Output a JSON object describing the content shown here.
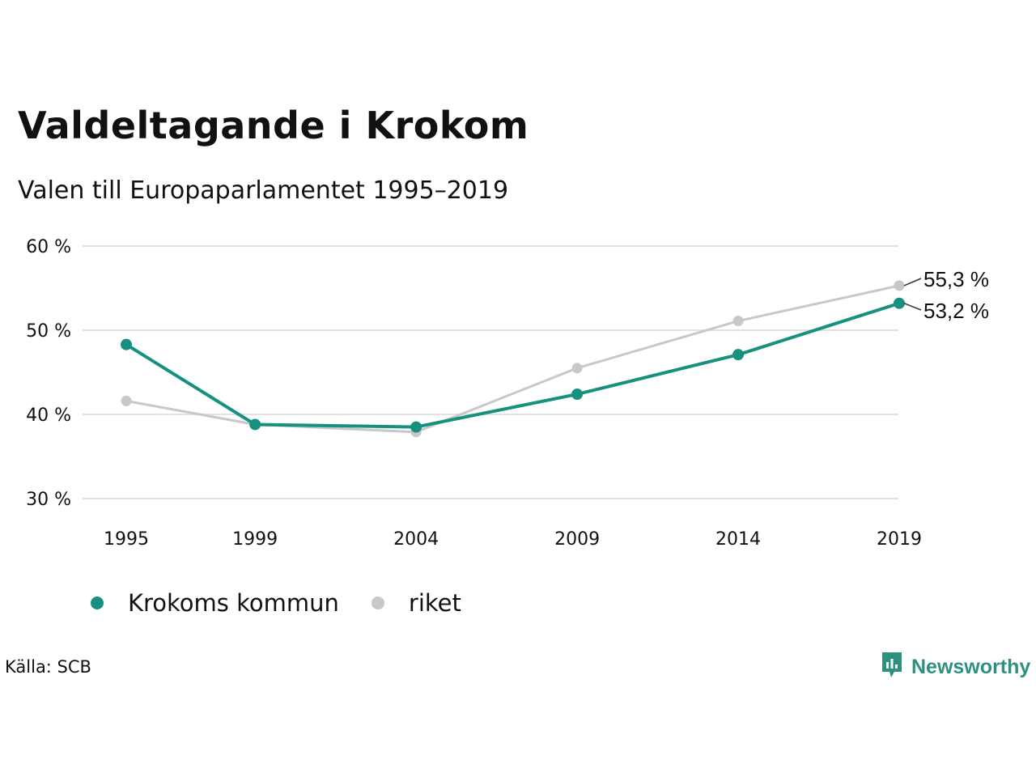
{
  "header": {
    "title": "Valdeltagande i Krokom",
    "subtitle": "Valen till Europaparlamentet 1995–2019"
  },
  "legend": {
    "items": [
      {
        "label": "Krokoms kommun",
        "color": "#17917f"
      },
      {
        "label": "riket",
        "color": "#c8c8c8"
      }
    ]
  },
  "footer": {
    "source": "Källa: SCB",
    "brand": "Newsworthy",
    "brand_icon": "newsworthy-logo-icon"
  },
  "chart_data": {
    "type": "line",
    "x": [
      "1995",
      "1999",
      "2004",
      "2009",
      "2014",
      "2019"
    ],
    "x_values": [
      1995,
      1999,
      2004,
      2009,
      2014,
      2019
    ],
    "ylim": [
      30,
      60
    ],
    "yticks": [
      30,
      40,
      50,
      60
    ],
    "ytick_labels": [
      "30 %",
      "40 %",
      "50 %",
      "60 %"
    ],
    "grid": true,
    "legend_placement": "bottom-left",
    "series": [
      {
        "name": "Krokoms kommun",
        "color": "#17917f",
        "values": [
          48.3,
          38.8,
          38.5,
          42.4,
          47.1,
          53.2
        ],
        "end_label": "53,2 %"
      },
      {
        "name": "riket",
        "color": "#c8c8c8",
        "values": [
          41.6,
          38.8,
          37.9,
          45.5,
          51.1,
          55.3
        ],
        "end_label": "55,3 %"
      }
    ]
  }
}
